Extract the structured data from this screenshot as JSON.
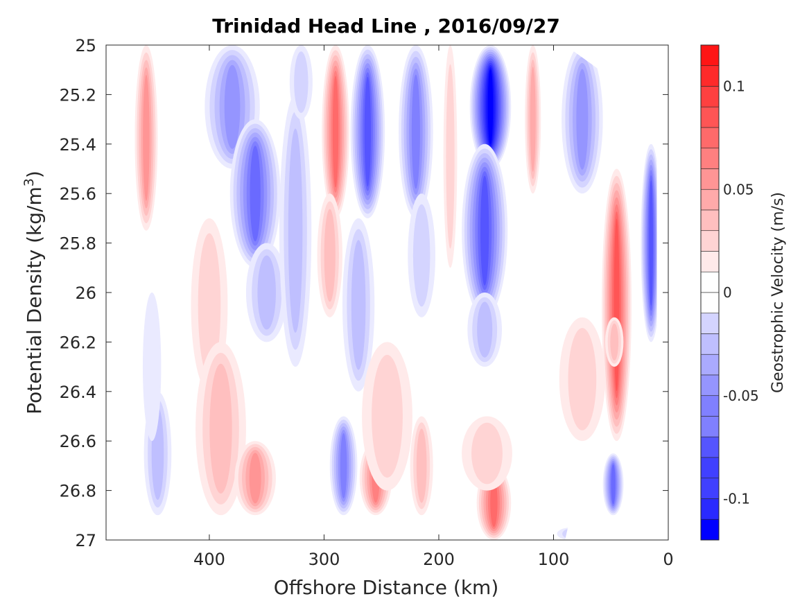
{
  "chart_data": {
    "type": "contour",
    "title": "Trinidad Head Line , 2016/09/27",
    "xlabel": "Offshore Distance (km)",
    "ylabel_main": "Potential Density (kg/m",
    "ylabel_sup": "3",
    "ylabel_close": ")",
    "colorbar_label": "Geostrophic Velocity (m/s)",
    "xlim": [
      490,
      0
    ],
    "ylim": [
      25,
      27
    ],
    "x_ticks": [
      {
        "value": 400,
        "label": "400"
      },
      {
        "value": 300,
        "label": "300"
      },
      {
        "value": 200,
        "label": "200"
      },
      {
        "value": 100,
        "label": "100"
      },
      {
        "value": 0,
        "label": "0"
      }
    ],
    "y_ticks": [
      {
        "value": 25,
        "label": "25"
      },
      {
        "value": 25.2,
        "label": "25.2"
      },
      {
        "value": 25.4,
        "label": "25.4"
      },
      {
        "value": 25.6,
        "label": "25.6"
      },
      {
        "value": 25.8,
        "label": "25.8"
      },
      {
        "value": 26,
        "label": "26"
      },
      {
        "value": 26.2,
        "label": "26.2"
      },
      {
        "value": 26.4,
        "label": "26.4"
      },
      {
        "value": 26.6,
        "label": "26.6"
      },
      {
        "value": 26.8,
        "label": "26.8"
      },
      {
        "value": 27,
        "label": "27"
      }
    ],
    "colorbar": {
      "range": [
        -0.12,
        0.12
      ],
      "levels": 24,
      "negative_color": "#0000ff",
      "positive_color": "#ff0000",
      "ticks": [
        {
          "value": 0.1,
          "label": "0.1"
        },
        {
          "value": 0.05,
          "label": "0.05"
        },
        {
          "value": 0,
          "label": "0"
        },
        {
          "value": -0.05,
          "label": "-0.05"
        },
        {
          "value": -0.1,
          "label": "-0.1"
        }
      ]
    },
    "data_bottom_density": 26.9,
    "cores": [
      {
        "name": "pos-455",
        "x": 455,
        "ylo": 25.0,
        "yhi": 25.75,
        "wx": 10,
        "v": 0.045
      },
      {
        "name": "neg-445",
        "x": 445,
        "ylo": 26.4,
        "yhi": 26.9,
        "wx": 12,
        "v": -0.025
      },
      {
        "name": "neg-450-mid",
        "x": 450,
        "ylo": 26.0,
        "yhi": 26.6,
        "wx": 8,
        "v": -0.012
      },
      {
        "name": "pos-400",
        "x": 400,
        "ylo": 25.7,
        "yhi": 26.4,
        "wx": 16,
        "v": 0.02
      },
      {
        "name": "pos-400-low",
        "x": 390,
        "ylo": 26.2,
        "yhi": 26.9,
        "wx": 22,
        "v": 0.03
      },
      {
        "name": "pos-360-deep",
        "x": 360,
        "ylo": 26.6,
        "yhi": 26.9,
        "wx": 18,
        "v": 0.045
      },
      {
        "name": "neg-380",
        "x": 380,
        "ylo": 25.0,
        "yhi": 25.5,
        "wx": 24,
        "v": -0.045
      },
      {
        "name": "neg-360",
        "x": 360,
        "ylo": 25.3,
        "yhi": 25.9,
        "wx": 22,
        "v": -0.065
      },
      {
        "name": "neg-355",
        "x": 350,
        "ylo": 25.8,
        "yhi": 26.2,
        "wx": 18,
        "v": -0.03
      },
      {
        "name": "neg-325",
        "x": 325,
        "ylo": 25.2,
        "yhi": 26.3,
        "wx": 14,
        "v": -0.025
      },
      {
        "name": "neg-320",
        "x": 320,
        "ylo": 25.0,
        "yhi": 25.3,
        "wx": 10,
        "v": -0.015
      },
      {
        "name": "pos-290",
        "x": 290,
        "ylo": 25.0,
        "yhi": 25.7,
        "wx": 12,
        "v": 0.07
      },
      {
        "name": "pos-295",
        "x": 295,
        "ylo": 25.6,
        "yhi": 26.1,
        "wx": 11,
        "v": 0.03
      },
      {
        "name": "neg-265",
        "x": 262,
        "ylo": 25.0,
        "yhi": 25.7,
        "wx": 15,
        "v": -0.075
      },
      {
        "name": "neg-270",
        "x": 270,
        "ylo": 25.7,
        "yhi": 26.4,
        "wx": 14,
        "v": -0.03
      },
      {
        "name": "neg-285-deep",
        "x": 283,
        "ylo": 26.5,
        "yhi": 26.9,
        "wx": 12,
        "v": -0.055
      },
      {
        "name": "pos-255-deep",
        "x": 255,
        "ylo": 26.6,
        "yhi": 26.9,
        "wx": 14,
        "v": 0.06
      },
      {
        "name": "pos-250",
        "x": 245,
        "ylo": 26.2,
        "yhi": 26.8,
        "wx": 22,
        "v": 0.02
      },
      {
        "name": "pos-215-deep",
        "x": 215,
        "ylo": 26.5,
        "yhi": 26.9,
        "wx": 10,
        "v": 0.03
      },
      {
        "name": "neg-220",
        "x": 220,
        "ylo": 25.0,
        "yhi": 25.7,
        "wx": 15,
        "v": -0.06
      },
      {
        "name": "neg-210",
        "x": 215,
        "ylo": 25.6,
        "yhi": 26.1,
        "wx": 12,
        "v": -0.02
      },
      {
        "name": "pos-190",
        "x": 190,
        "ylo": 25.0,
        "yhi": 25.9,
        "wx": 6,
        "v": 0.015
      },
      {
        "name": "neg-155",
        "x": 155,
        "ylo": 25.0,
        "yhi": 25.5,
        "wx": 18,
        "v": -0.115
      },
      {
        "name": "neg-160",
        "x": 160,
        "ylo": 25.4,
        "yhi": 26.1,
        "wx": 20,
        "v": -0.08
      },
      {
        "name": "neg-160-low",
        "x": 160,
        "ylo": 26.0,
        "yhi": 26.3,
        "wx": 15,
        "v": -0.025
      },
      {
        "name": "pos-155-deep",
        "x": 152,
        "ylo": 26.7,
        "yhi": 27.0,
        "wx": 15,
        "v": 0.07
      },
      {
        "name": "pos-160-mid",
        "x": 158,
        "ylo": 26.5,
        "yhi": 26.8,
        "wx": 22,
        "v": 0.02
      },
      {
        "name": "pos-120",
        "x": 118,
        "ylo": 25.0,
        "yhi": 25.6,
        "wx": 7,
        "v": 0.035
      },
      {
        "name": "neg-75",
        "x": 75,
        "ylo": 25.0,
        "yhi": 25.6,
        "wx": 18,
        "v": -0.045
      },
      {
        "name": "neg-85",
        "x": 85,
        "ylo": 26.95,
        "yhi": 27.0,
        "wx": 12,
        "v": -0.015
      },
      {
        "name": "pos-75",
        "x": 75,
        "ylo": 26.1,
        "yhi": 26.6,
        "wx": 20,
        "v": 0.015
      },
      {
        "name": "pos-45",
        "x": 45,
        "ylo": 25.5,
        "yhi": 26.6,
        "wx": 13,
        "v": 0.08
      },
      {
        "name": "pos-45-core",
        "x": 47,
        "ylo": 26.1,
        "yhi": 26.3,
        "wx": 8,
        "v": 0.03
      },
      {
        "name": "neg-15",
        "x": 15,
        "ylo": 25.4,
        "yhi": 26.2,
        "wx": 9,
        "v": -0.08
      },
      {
        "name": "neg-45-deep",
        "x": 48,
        "ylo": 26.65,
        "yhi": 26.9,
        "wx": 9,
        "v": -0.07
      }
    ]
  }
}
